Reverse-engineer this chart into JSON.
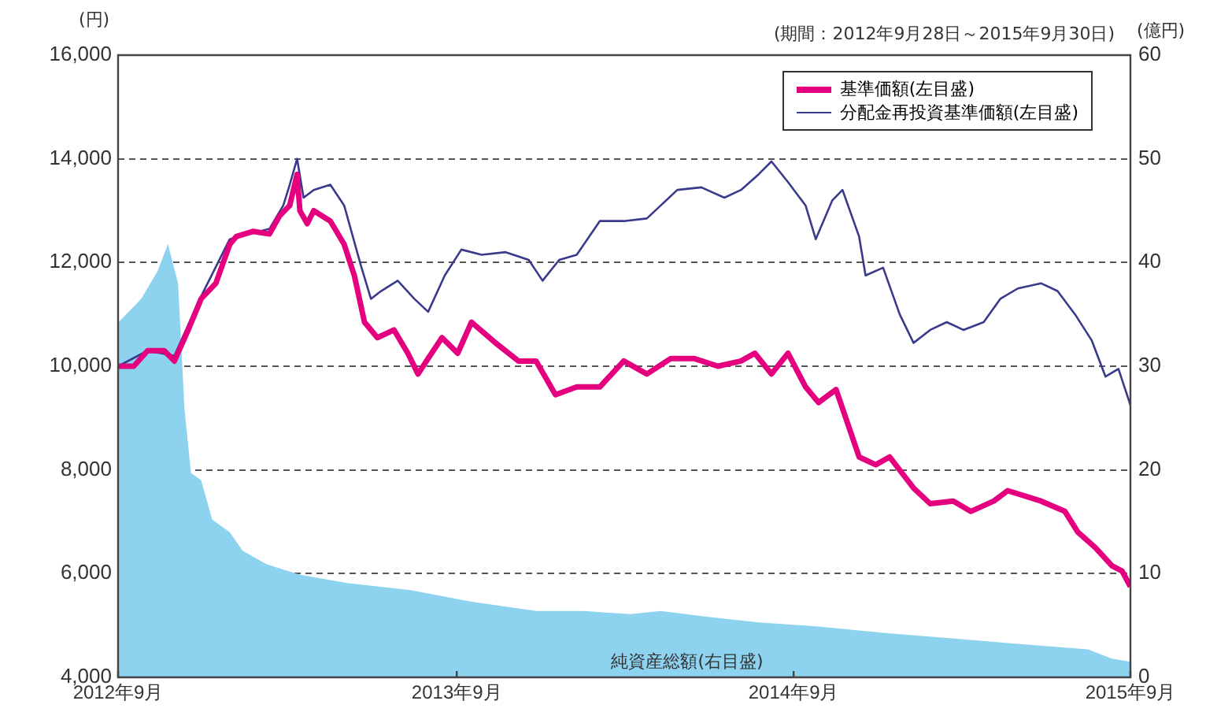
{
  "chart_data": {
    "type": "line",
    "ylabel": "(円)",
    "y2label": "(億円)",
    "annotations": [
      "(期間：2012年9月28日～2015年9月30日)"
    ],
    "xlim": [
      "2012-09-28",
      "2015-09-30"
    ],
    "xticks": [
      {
        "value": "2012-09-28",
        "label": "2012年9月"
      },
      {
        "value": "2013-09-30",
        "label": "2013年9月"
      },
      {
        "value": "2014-09-30",
        "label": "2014年9月"
      },
      {
        "value": "2015-09-30",
        "label": "2015年9月"
      }
    ],
    "ylim": [
      4000,
      16000
    ],
    "yticks": [
      {
        "value": 4000,
        "label": "4,000"
      },
      {
        "value": 6000,
        "label": "6,000"
      },
      {
        "value": 8000,
        "label": "8,000"
      },
      {
        "value": 10000,
        "label": "10,000"
      },
      {
        "value": 12000,
        "label": "12,000"
      },
      {
        "value": 14000,
        "label": "14,000"
      },
      {
        "value": 16000,
        "label": "16,000"
      }
    ],
    "y2lim": [
      0,
      60
    ],
    "y2ticks": [
      0,
      10,
      20,
      30,
      40,
      50,
      60
    ],
    "grid": "y",
    "legend": "top right",
    "marker": "none",
    "line_style": "solid",
    "series": [
      {
        "name": "純資産総額(右目盛)",
        "type": "area",
        "axis": "y2",
        "color": "#8dd3f0",
        "x": [
          "2012-09-28",
          "2012-10-23",
          "2012-11-10",
          "2012-11-21",
          "2012-12-02",
          "2012-12-09",
          "2012-12-16",
          "2012-12-27",
          "2013-01-08",
          "2013-01-27",
          "2013-02-10",
          "2013-03-08",
          "2013-04-13",
          "2013-06-03",
          "2013-08-12",
          "2013-10-16",
          "2013-12-25",
          "2014-02-14",
          "2014-04-06",
          "2014-05-09",
          "2014-07-03",
          "2014-08-23",
          "2014-10-27",
          "2015-01-05",
          "2015-03-15",
          "2015-05-20",
          "2015-08-15",
          "2015-09-10",
          "2015-09-30"
        ],
        "values": [
          34.2,
          36.5,
          39.2,
          41.8,
          38,
          25.8,
          19.7,
          19,
          15.2,
          14,
          12.2,
          10.9,
          9.9,
          9.1,
          8.4,
          7.3,
          6.4,
          6.4,
          6.1,
          6.4,
          5.8,
          5.3,
          4.9,
          4.3,
          3.8,
          3.3,
          2.7,
          1.8,
          1.5
        ]
      },
      {
        "name": "基準価額(左目盛)",
        "color": "#e4007f",
        "x": [
          "2012-09-28",
          "2012-10-15",
          "2012-10-30",
          "2012-11-17",
          "2012-11-28",
          "2012-12-13",
          "2012-12-27",
          "2013-01-12",
          "2013-01-27",
          "2013-02-03",
          "2013-02-21",
          "2013-03-11",
          "2013-03-22",
          "2013-04-02",
          "2013-04-10",
          "2013-04-13",
          "2013-04-21",
          "2013-04-28",
          "2013-05-16",
          "2013-05-31",
          "2013-06-11",
          "2013-06-22",
          "2013-07-06",
          "2013-07-24",
          "2013-08-08",
          "2013-08-19",
          "2013-08-30",
          "2013-09-14",
          "2013-10-01",
          "2013-10-16",
          "2013-11-11",
          "2013-12-06",
          "2013-12-25",
          "2014-01-15",
          "2014-02-07",
          "2014-03-04",
          "2014-03-30",
          "2014-04-24",
          "2014-05-20",
          "2014-06-14",
          "2014-07-10",
          "2014-08-04",
          "2014-08-19",
          "2014-09-06",
          "2014-09-24",
          "2014-10-13",
          "2014-10-27",
          "2014-11-15",
          "2014-12-10",
          "2014-12-28",
          "2015-01-12",
          "2015-02-07",
          "2015-02-25",
          "2015-03-22",
          "2015-04-10",
          "2015-05-05",
          "2015-05-20",
          "2015-06-25",
          "2015-07-21",
          "2015-08-04",
          "2015-08-23",
          "2015-09-10",
          "2015-09-21",
          "2015-09-30"
        ],
        "values": [
          10000,
          10000,
          10300,
          10300,
          10100,
          10700,
          11300,
          11600,
          12350,
          12500,
          12600,
          12550,
          12900,
          13100,
          13700,
          13000,
          12750,
          13000,
          12800,
          12350,
          11750,
          10850,
          10550,
          10700,
          10250,
          9850,
          10150,
          10550,
          10250,
          10850,
          10450,
          10100,
          10100,
          9450,
          9600,
          9600,
          10100,
          9850,
          10150,
          10150,
          10000,
          10100,
          10250,
          9850,
          10250,
          9600,
          9300,
          9550,
          8250,
          8100,
          8250,
          7650,
          7350,
          7400,
          7200,
          7400,
          7600,
          7400,
          7200,
          6800,
          6500,
          6150,
          6050,
          5750
        ]
      },
      {
        "name": "分配金再投資基準価額(左目盛)",
        "color": "#3a3a8c",
        "x": [
          "2012-09-28",
          "2012-10-30",
          "2012-11-28",
          "2012-12-27",
          "2013-01-27",
          "2013-02-21",
          "2013-03-11",
          "2013-03-26",
          "2013-04-02",
          "2013-04-10",
          "2013-04-17",
          "2013-04-28",
          "2013-05-16",
          "2013-05-31",
          "2013-06-18",
          "2013-06-29",
          "2013-07-10",
          "2013-07-28",
          "2013-08-15",
          "2013-08-30",
          "2013-09-17",
          "2013-10-05",
          "2013-10-27",
          "2013-11-22",
          "2013-12-17",
          "2014-01-01",
          "2014-01-19",
          "2014-02-07",
          "2014-03-04",
          "2014-03-30",
          "2014-04-24",
          "2014-05-09",
          "2014-05-27",
          "2014-06-22",
          "2014-07-17",
          "2014-08-04",
          "2014-08-23",
          "2014-09-06",
          "2014-09-24",
          "2014-10-13",
          "2014-10-24",
          "2014-11-11",
          "2014-11-22",
          "2014-12-10",
          "2014-12-17",
          "2015-01-05",
          "2015-01-23",
          "2015-02-07",
          "2015-02-25",
          "2015-03-15",
          "2015-04-02",
          "2015-04-24",
          "2015-05-12",
          "2015-05-31",
          "2015-06-25",
          "2015-07-13",
          "2015-08-01",
          "2015-08-19",
          "2015-09-03",
          "2015-09-17",
          "2015-09-30"
        ],
        "values": [
          10000,
          10300,
          10200,
          11350,
          12450,
          null,
          12650,
          13100,
          13500,
          14000,
          13250,
          13400,
          13500,
          13100,
          11950,
          11300,
          11450,
          11650,
          11300,
          11050,
          11750,
          12250,
          12150,
          12200,
          12050,
          11650,
          12050,
          12150,
          12800,
          12800,
          12850,
          13100,
          13400,
          13450,
          13250,
          13400,
          13700,
          13950,
          13550,
          13100,
          12450,
          13200,
          13400,
          12500,
          11750,
          11900,
          11000,
          10450,
          10700,
          10850,
          10700,
          10850,
          11300,
          11500,
          11600,
          11450,
          11000,
          10500,
          9800,
          9950,
          9250
        ]
      }
    ]
  }
}
